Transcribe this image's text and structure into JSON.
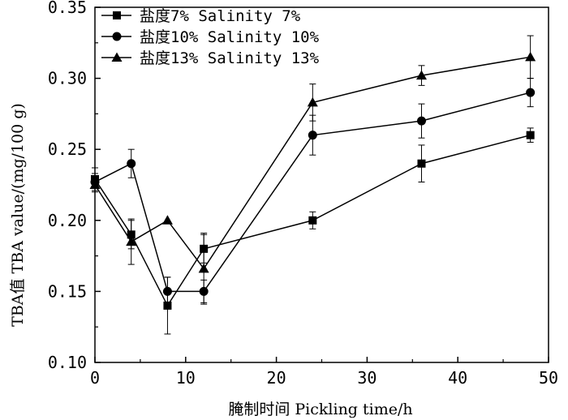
{
  "chart_data": {
    "type": "line",
    "xlabel": "腌制时间 Pickling time/h",
    "ylabel": "TBA值 TBA value/(mg/100 g)",
    "xlim": [
      0,
      50
    ],
    "ylim": [
      0.1,
      0.35
    ],
    "xticks": [
      0,
      10,
      20,
      30,
      40,
      50
    ],
    "yticks": [
      0.1,
      0.15,
      0.2,
      0.25,
      0.3,
      0.35
    ],
    "xtick_labels": [
      "0",
      "10",
      "20",
      "30",
      "40",
      "50"
    ],
    "ytick_labels": [
      "0.10",
      "0.15",
      "0.20",
      "0.25",
      "0.30",
      "0.35"
    ],
    "grid": false,
    "legend_position": "top-left",
    "x": [
      0,
      4,
      8,
      12,
      24,
      36,
      48
    ],
    "series": [
      {
        "name": "盐度7% Salinity 7%",
        "marker": "square",
        "values": [
          0.229,
          0.19,
          0.14,
          0.18,
          0.2,
          0.24,
          0.26
        ],
        "errors": [
          0.008,
          0.01,
          0.02,
          0.01,
          0.006,
          0.013,
          0.005
        ]
      },
      {
        "name": "盐度10% Salinity 10%",
        "marker": "circle",
        "values": [
          0.227,
          0.24,
          0.15,
          0.15,
          0.26,
          0.27,
          0.29
        ],
        "errors": [
          0.006,
          0.01,
          0.01,
          0.008,
          0.014,
          0.012,
          0.01
        ]
      },
      {
        "name": "盐度13% Salinity 13%",
        "marker": "triangle",
        "values": [
          0.225,
          0.185,
          0.2,
          0.166,
          0.283,
          0.302,
          0.315
        ],
        "errors": [
          0.005,
          0.016,
          0.0,
          0.025,
          0.013,
          0.007,
          0.015
        ]
      }
    ]
  }
}
